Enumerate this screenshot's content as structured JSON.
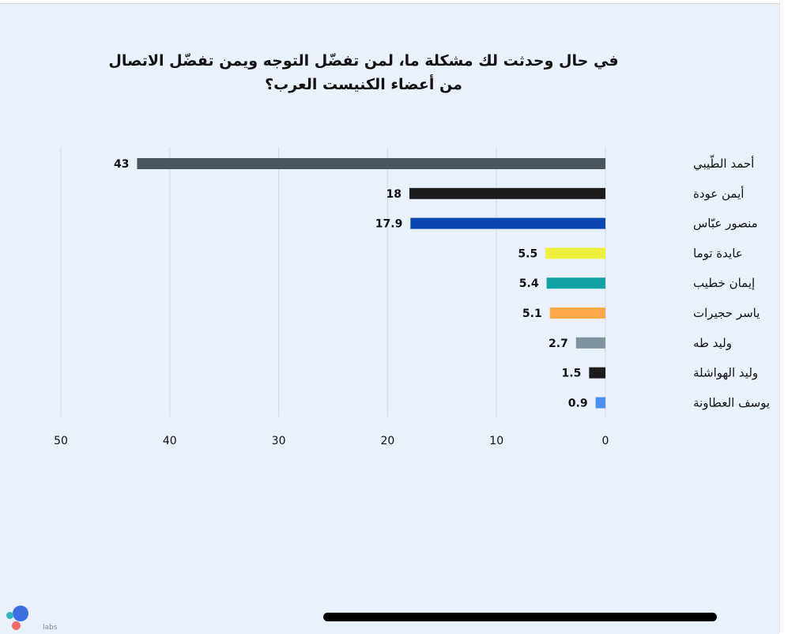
{
  "chart_data": {
    "type": "bar",
    "orientation": "horizontal",
    "title": "في حال وحدثت لك مشكلة ما، لمن تفضّل التوجه ويمن تفضّل الاتصال من أعضاء الكنيست العرب؟",
    "categories": [
      "أحمد الطّيبي",
      "أيمن عودة",
      "منصور عبّاس",
      "عايدة توما",
      "إيمان خطيب",
      "ياسر حجيرات",
      "وليد طه",
      "وليد الهواشلة",
      "يوسف العطاونة"
    ],
    "values": [
      43,
      18,
      17.9,
      5.5,
      5.4,
      5.1,
      2.7,
      1.5,
      0.9
    ],
    "value_labels": [
      "43",
      "18",
      "17.9",
      "5.5",
      "5.4",
      "5.1",
      "2.7",
      "1.5",
      "0.9"
    ],
    "colors": [
      "#4a565d",
      "#1c1c1c",
      "#0b47b0",
      "#eef03c",
      "#12a3a6",
      "#ffa94a",
      "#7f939c",
      "#1c1c1c",
      "#4d8ff0"
    ],
    "xlim": [
      0,
      50
    ],
    "x_axis_reversed": true,
    "xticks": [
      "0",
      "10",
      "20",
      "30",
      "40",
      "50"
    ],
    "grid": true
  },
  "branding": {
    "text": "labs"
  }
}
